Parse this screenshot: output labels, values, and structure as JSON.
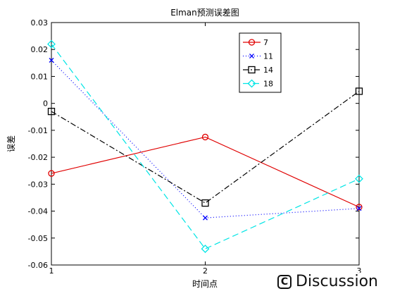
{
  "chart_data": {
    "type": "line",
    "title": "Elman预测误差图",
    "xlabel": "时间点",
    "ylabel": "误差",
    "x": [
      1,
      2,
      3
    ],
    "xlim": [
      1,
      3
    ],
    "ylim": [
      -0.06,
      0.03
    ],
    "xticks": [
      "1",
      "2",
      "3"
    ],
    "yticks": [
      "0.03",
      "0.02",
      "0.01",
      "0",
      "-0.01",
      "-0.02",
      "-0.03",
      "-0.04",
      "-0.05",
      "-0.06"
    ],
    "grid": false,
    "legend_position": "top-right",
    "series": [
      {
        "name": "7",
        "values": [
          -0.026,
          -0.0125,
          -0.0385
        ],
        "color": "#e00000",
        "dash": "",
        "marker": "circle"
      },
      {
        "name": "11",
        "values": [
          0.016,
          -0.0425,
          -0.039
        ],
        "color": "#0000ff",
        "dash": "1,3",
        "marker": "x"
      },
      {
        "name": "14",
        "values": [
          -0.003,
          -0.037,
          0.0045
        ],
        "color": "#000000",
        "dash": "8,3,2,3",
        "marker": "square"
      },
      {
        "name": "18",
        "values": [
          0.022,
          -0.054,
          -0.028
        ],
        "color": "#00e5e5",
        "dash": "9,5",
        "marker": "diamond"
      }
    ]
  },
  "watermark": {
    "icon_glyph": "C",
    "text": "Discussion"
  }
}
